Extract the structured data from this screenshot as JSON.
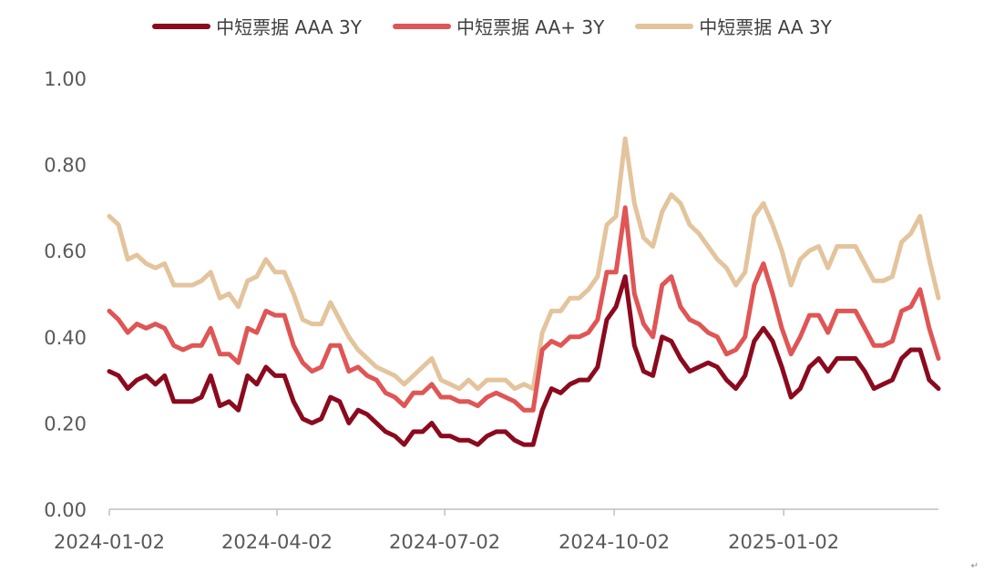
{
  "chart_data": {
    "type": "line",
    "title": "",
    "xlabel": "",
    "ylabel": "",
    "ylim": [
      0,
      1.0
    ],
    "xlim": [
      "2024-01-02",
      "2025-03-27"
    ],
    "yticks": [
      "0.00",
      "0.20",
      "0.40",
      "0.60",
      "0.80",
      "1.00"
    ],
    "xticks": [
      "2024-01-02",
      "2024-04-02",
      "2024-07-02",
      "2024-10-02",
      "2025-01-02"
    ],
    "grid": false,
    "legend_position": "top",
    "x": [
      "2024-01-02",
      "2024-01-07",
      "2024-01-12",
      "2024-01-17",
      "2024-01-22",
      "2024-01-27",
      "2024-02-01",
      "2024-02-06",
      "2024-02-11",
      "2024-02-16",
      "2024-02-21",
      "2024-02-26",
      "2024-03-02",
      "2024-03-07",
      "2024-03-12",
      "2024-03-17",
      "2024-03-22",
      "2024-03-27",
      "2024-04-01",
      "2024-04-06",
      "2024-04-11",
      "2024-04-16",
      "2024-04-21",
      "2024-04-26",
      "2024-05-01",
      "2024-05-06",
      "2024-05-11",
      "2024-05-16",
      "2024-05-21",
      "2024-05-26",
      "2024-05-31",
      "2024-06-05",
      "2024-06-10",
      "2024-06-15",
      "2024-06-20",
      "2024-06-25",
      "2024-06-30",
      "2024-07-05",
      "2024-07-10",
      "2024-07-15",
      "2024-07-20",
      "2024-07-25",
      "2024-07-30",
      "2024-08-04",
      "2024-08-09",
      "2024-08-14",
      "2024-08-19",
      "2024-08-24",
      "2024-08-29",
      "2024-09-03",
      "2024-09-08",
      "2024-09-13",
      "2024-09-18",
      "2024-09-23",
      "2024-09-28",
      "2024-10-03",
      "2024-10-08",
      "2024-10-13",
      "2024-10-18",
      "2024-10-23",
      "2024-10-28",
      "2024-11-02",
      "2024-11-07",
      "2024-11-12",
      "2024-11-17",
      "2024-11-22",
      "2024-11-27",
      "2024-12-02",
      "2024-12-07",
      "2024-12-12",
      "2024-12-17",
      "2024-12-22",
      "2024-12-27",
      "2025-01-01",
      "2025-01-06",
      "2025-01-11",
      "2025-01-16",
      "2025-01-21",
      "2025-01-26",
      "2025-01-31",
      "2025-02-05",
      "2025-02-10",
      "2025-02-15",
      "2025-02-20",
      "2025-02-25",
      "2025-03-02",
      "2025-03-07",
      "2025-03-12",
      "2025-03-17",
      "2025-03-22",
      "2025-03-27"
    ],
    "series": [
      {
        "name": "中短票据 AAA 3Y",
        "color": "#8B0A1E",
        "values": [
          0.32,
          0.31,
          0.28,
          0.3,
          0.31,
          0.29,
          0.31,
          0.25,
          0.25,
          0.25,
          0.26,
          0.31,
          0.24,
          0.25,
          0.23,
          0.31,
          0.29,
          0.33,
          0.31,
          0.31,
          0.25,
          0.21,
          0.2,
          0.21,
          0.26,
          0.25,
          0.2,
          0.23,
          0.22,
          0.2,
          0.18,
          0.17,
          0.15,
          0.18,
          0.18,
          0.2,
          0.17,
          0.17,
          0.16,
          0.16,
          0.15,
          0.17,
          0.18,
          0.18,
          0.16,
          0.15,
          0.15,
          0.23,
          0.28,
          0.27,
          0.29,
          0.3,
          0.3,
          0.33,
          0.44,
          0.47,
          0.54,
          0.38,
          0.32,
          0.31,
          0.4,
          0.39,
          0.35,
          0.32,
          0.33,
          0.34,
          0.33,
          0.3,
          0.28,
          0.31,
          0.39,
          0.42,
          0.39,
          0.33,
          0.26,
          0.28,
          0.33,
          0.35,
          0.32,
          0.35,
          0.35,
          0.35,
          0.32,
          0.28,
          0.29,
          0.3,
          0.35,
          0.37,
          0.37,
          0.3,
          0.28
        ]
      },
      {
        "name": "中短票据 AA+ 3Y",
        "color": "#E05555",
        "values": [
          0.46,
          0.44,
          0.41,
          0.43,
          0.42,
          0.43,
          0.42,
          0.38,
          0.37,
          0.38,
          0.38,
          0.42,
          0.36,
          0.36,
          0.34,
          0.42,
          0.41,
          0.46,
          0.45,
          0.45,
          0.38,
          0.34,
          0.32,
          0.33,
          0.38,
          0.38,
          0.32,
          0.33,
          0.31,
          0.3,
          0.27,
          0.26,
          0.24,
          0.27,
          0.27,
          0.29,
          0.26,
          0.26,
          0.25,
          0.25,
          0.24,
          0.26,
          0.27,
          0.26,
          0.25,
          0.23,
          0.23,
          0.37,
          0.39,
          0.38,
          0.4,
          0.4,
          0.41,
          0.44,
          0.55,
          0.55,
          0.7,
          0.5,
          0.43,
          0.4,
          0.52,
          0.54,
          0.47,
          0.44,
          0.43,
          0.41,
          0.4,
          0.36,
          0.37,
          0.4,
          0.52,
          0.57,
          0.5,
          0.42,
          0.36,
          0.4,
          0.45,
          0.45,
          0.41,
          0.46,
          0.46,
          0.46,
          0.42,
          0.38,
          0.38,
          0.39,
          0.46,
          0.47,
          0.51,
          0.42,
          0.35
        ]
      },
      {
        "name": "中短票据 AA 3Y",
        "color": "#E3C49C",
        "values": [
          0.68,
          0.66,
          0.58,
          0.59,
          0.57,
          0.56,
          0.57,
          0.52,
          0.52,
          0.52,
          0.53,
          0.55,
          0.49,
          0.5,
          0.47,
          0.53,
          0.54,
          0.58,
          0.55,
          0.55,
          0.5,
          0.44,
          0.43,
          0.43,
          0.48,
          0.44,
          0.4,
          0.37,
          0.35,
          0.33,
          0.32,
          0.31,
          0.29,
          0.31,
          0.33,
          0.35,
          0.3,
          0.29,
          0.28,
          0.3,
          0.28,
          0.3,
          0.3,
          0.3,
          0.28,
          0.29,
          0.28,
          0.41,
          0.46,
          0.46,
          0.49,
          0.49,
          0.51,
          0.54,
          0.66,
          0.68,
          0.86,
          0.71,
          0.63,
          0.61,
          0.69,
          0.73,
          0.71,
          0.66,
          0.64,
          0.61,
          0.58,
          0.56,
          0.52,
          0.55,
          0.68,
          0.71,
          0.66,
          0.6,
          0.52,
          0.58,
          0.6,
          0.61,
          0.56,
          0.61,
          0.61,
          0.61,
          0.57,
          0.53,
          0.53,
          0.54,
          0.62,
          0.64,
          0.68,
          0.58,
          0.49
        ]
      }
    ]
  },
  "footer_mark": "↵"
}
